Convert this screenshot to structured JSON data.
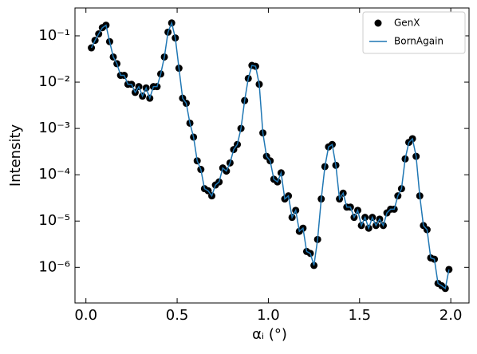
{
  "chart_data": {
    "type": "line-scatter",
    "xlabel": "αᵢ (°)",
    "ylabel": "Intensity",
    "x": [
      0.03,
      0.05,
      0.07,
      0.09,
      0.11,
      0.13,
      0.15,
      0.17,
      0.19,
      0.21,
      0.23,
      0.25,
      0.27,
      0.29,
      0.31,
      0.33,
      0.35,
      0.37,
      0.39,
      0.41,
      0.43,
      0.45,
      0.47,
      0.49,
      0.51,
      0.53,
      0.55,
      0.57,
      0.59,
      0.61,
      0.63,
      0.65,
      0.67,
      0.69,
      0.71,
      0.73,
      0.75,
      0.77,
      0.79,
      0.81,
      0.83,
      0.85,
      0.87,
      0.89,
      0.91,
      0.93,
      0.95,
      0.97,
      0.99,
      1.01,
      1.03,
      1.05,
      1.07,
      1.09,
      1.11,
      1.13,
      1.15,
      1.17,
      1.19,
      1.21,
      1.23,
      1.25,
      1.27,
      1.29,
      1.31,
      1.33,
      1.35,
      1.37,
      1.39,
      1.41,
      1.43,
      1.45,
      1.47,
      1.49,
      1.51,
      1.53,
      1.55,
      1.57,
      1.59,
      1.61,
      1.63,
      1.65,
      1.67,
      1.69,
      1.71,
      1.73,
      1.75,
      1.77,
      1.79,
      1.81,
      1.83,
      1.85,
      1.87,
      1.89,
      1.91,
      1.93,
      1.95,
      1.97,
      1.99
    ],
    "series": [
      {
        "name": "GenX",
        "color": "#000000",
        "marker": "circle",
        "values": [
          0.055,
          0.08,
          0.11,
          0.15,
          0.17,
          0.075,
          0.035,
          0.025,
          0.014,
          0.014,
          0.009,
          0.009,
          0.006,
          0.008,
          0.005,
          0.0075,
          0.0045,
          0.008,
          0.008,
          0.015,
          0.035,
          0.12,
          0.19,
          0.09,
          0.02,
          0.0045,
          0.0035,
          0.0013,
          0.00065,
          0.0002,
          0.00013,
          5e-05,
          4.5e-05,
          3.5e-05,
          6e-05,
          7e-05,
          0.00014,
          0.00012,
          0.00018,
          0.00035,
          0.00045,
          0.001,
          0.004,
          0.012,
          0.023,
          0.022,
          0.009,
          0.0008,
          0.00025,
          0.0002,
          8e-05,
          7e-05,
          0.00011,
          3e-05,
          3.5e-05,
          1.2e-05,
          1.7e-05,
          6e-06,
          7e-06,
          2.2e-06,
          2e-06,
          1.1e-06,
          4e-06,
          3e-05,
          0.00015,
          0.0004,
          0.00045,
          0.00016,
          3e-05,
          4e-05,
          2e-05,
          2e-05,
          1.2e-05,
          1.7e-05,
          8e-06,
          1.2e-05,
          7e-06,
          1.2e-05,
          8e-06,
          1.1e-05,
          8e-06,
          1.5e-05,
          1.8e-05,
          1.8e-05,
          3.5e-05,
          5e-05,
          0.00022,
          0.0005,
          0.0006,
          0.00025,
          3.5e-05,
          8e-06,
          6.5e-06,
          1.6e-06,
          1.5e-06,
          4.5e-07,
          4e-07,
          3.5e-07,
          9e-07
        ]
      },
      {
        "name": "BornAgain",
        "color": "#1f77b4",
        "marker": "line",
        "values": [
          0.055,
          0.08,
          0.11,
          0.15,
          0.17,
          0.075,
          0.035,
          0.025,
          0.014,
          0.014,
          0.009,
          0.009,
          0.006,
          0.008,
          0.005,
          0.0075,
          0.0045,
          0.008,
          0.008,
          0.015,
          0.035,
          0.12,
          0.19,
          0.09,
          0.02,
          0.0045,
          0.0035,
          0.0013,
          0.00065,
          0.0002,
          0.00013,
          5e-05,
          4.5e-05,
          3.5e-05,
          6e-05,
          7e-05,
          0.00014,
          0.00012,
          0.00018,
          0.00035,
          0.00045,
          0.001,
          0.004,
          0.012,
          0.023,
          0.022,
          0.009,
          0.0008,
          0.00025,
          0.0002,
          8e-05,
          7e-05,
          0.00011,
          3e-05,
          3.5e-05,
          1.2e-05,
          1.7e-05,
          6e-06,
          7e-06,
          2.2e-06,
          2e-06,
          1.1e-06,
          4e-06,
          3e-05,
          0.00015,
          0.0004,
          0.00045,
          0.00016,
          3e-05,
          4e-05,
          2e-05,
          2e-05,
          1.2e-05,
          1.7e-05,
          8e-06,
          1.2e-05,
          7e-06,
          1.2e-05,
          8e-06,
          1.1e-05,
          8e-06,
          1.5e-05,
          1.8e-05,
          1.8e-05,
          3.5e-05,
          5e-05,
          0.00022,
          0.0005,
          0.0006,
          0.00025,
          3.5e-05,
          8e-06,
          6.5e-06,
          1.6e-06,
          1.5e-06,
          4.5e-07,
          4e-07,
          3.5e-07,
          9e-07
        ]
      }
    ],
    "xlim": [
      -0.06,
      2.1
    ],
    "xticks": [
      {
        "value": 0,
        "label": "0.0"
      },
      0.5,
      {
        "value": 1,
        "label": "1.0"
      },
      1.5,
      {
        "value": 2,
        "label": "2.0"
      }
    ],
    "ylim": [
      1.7e-07,
      0.4
    ],
    "log_y": true,
    "yticks": [
      {
        "value": 0.1,
        "label": "10⁻¹"
      },
      {
        "value": 0.01,
        "label": "10⁻²"
      },
      {
        "value": 0.001,
        "label": "10⁻³"
      },
      {
        "value": 0.0001,
        "label": "10⁻⁴"
      },
      {
        "value": 1e-05,
        "label": "10⁻⁵"
      },
      {
        "value": 1e-06,
        "label": "10⁻⁶"
      }
    ],
    "grid": false,
    "legend": "upper right"
  }
}
